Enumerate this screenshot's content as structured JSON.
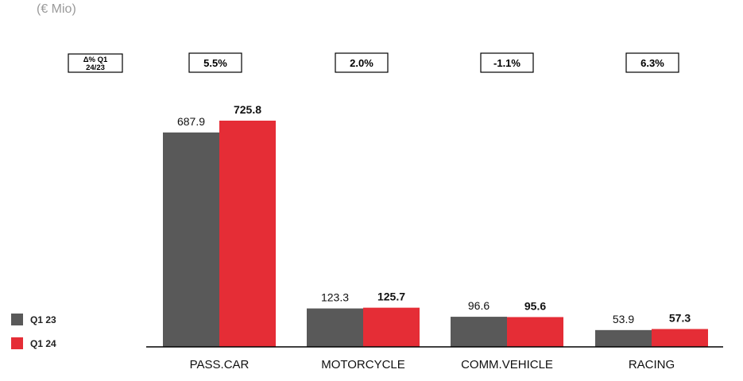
{
  "unit_label": "(€ Mio)",
  "delta_header": [
    "Δ% Q1",
    "24/23"
  ],
  "colors": {
    "q1_23": "#595959",
    "q1_24": "#e52d36",
    "axis": "#000000"
  },
  "chart_data": {
    "type": "bar",
    "title": "",
    "unit": "€ Mio",
    "categories": [
      "PASS.CAR",
      "MOTORCYCLE",
      "COMM.VEHICLE",
      "RACING"
    ],
    "series": [
      {
        "name": "Q1 23",
        "values": [
          687.9,
          123.3,
          96.6,
          53.9
        ],
        "value_labels": [
          "687.9",
          "123.3",
          "96.6",
          "53.9"
        ]
      },
      {
        "name": "Q1 24",
        "values": [
          725.8,
          125.7,
          95.6,
          57.3
        ],
        "value_labels": [
          "725.8",
          "125.7",
          "95.6",
          "57.3"
        ]
      }
    ],
    "delta_pct": [
      "5.5%",
      "2.0%",
      "-1.1%",
      "6.3%"
    ],
    "ylim": [
      0,
      725.8
    ],
    "legend": "bottom-left",
    "grid": false
  }
}
